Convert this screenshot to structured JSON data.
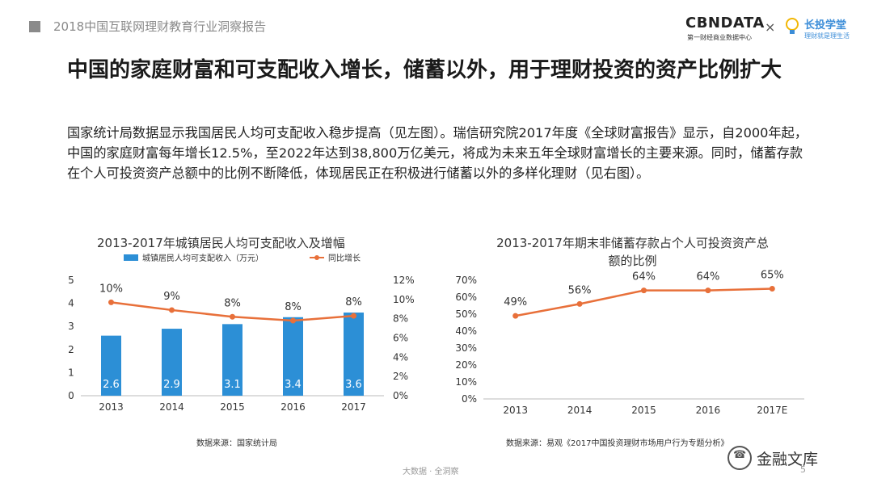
{
  "header": {
    "report_title": "2018中国互联网理财教育行业洞察报告",
    "logo_cbndata": "CBNDATA",
    "logo_cbndata_sub": "第一财经商业数据中心",
    "logo_separator": "×",
    "logo_partner": "长投学堂",
    "logo_partner_sub": "理财就是理生活"
  },
  "main_title": "中国的家庭财富和可支配收入增长，储蓄以外，用于理财投资的资产比例扩大",
  "paragraph": "国家统计局数据显示我国居民人均可支配收入稳步提高（见左图）。瑞信研究院2017年度《全球财富报告》显示，自2000年起，中国的家庭财富每年增长12.5%，至2022年达到38,800万亿美元，将成为未来五年全球财富增长的主要来源。同时，储蓄存款在个人可投资资产总额中的比例不断降低，体现居民正在积极进行储蓄以外的多样化理财（见右图）。",
  "chart_data": [
    {
      "type": "bar",
      "title": "2013-2017年城镇居民人均可支配收入及增幅",
      "categories": [
        "2013",
        "2014",
        "2015",
        "2016",
        "2017"
      ],
      "series": [
        {
          "name": "城镇居民人均可支配收入（万元）",
          "type": "bar",
          "axis": "left",
          "values": [
            2.6,
            2.9,
            3.1,
            3.4,
            3.6
          ],
          "labels": [
            "2.6",
            "2.9",
            "3.1",
            "3.4",
            "3.6"
          ],
          "color": "#2c8fd6"
        },
        {
          "name": "同比增长",
          "type": "line",
          "axis": "right",
          "values": [
            9.7,
            8.9,
            8.2,
            7.8,
            8.3
          ],
          "labels": [
            "10%",
            "9%",
            "8%",
            "8%",
            "8%"
          ],
          "color": "#e8703a"
        }
      ],
      "y_left": {
        "ticks": [
          "0",
          "1",
          "2",
          "3",
          "4",
          "5"
        ],
        "range": [
          0,
          5
        ]
      },
      "y_right": {
        "ticks": [
          "0%",
          "2%",
          "4%",
          "6%",
          "8%",
          "10%",
          "12%"
        ],
        "range": [
          0,
          12
        ]
      },
      "legend_position": "top",
      "grid": false,
      "source": "数据来源：国家统计局"
    },
    {
      "type": "line",
      "title": "2013-2017年期末非储蓄存款占个人可投资资产总额的比例",
      "categories": [
        "2013",
        "2014",
        "2015",
        "2016",
        "2017E"
      ],
      "series": [
        {
          "name": "",
          "values": [
            49,
            56,
            64,
            64,
            65
          ],
          "labels": [
            "49%",
            "56%",
            "64%",
            "64%",
            "65%"
          ],
          "color": "#e8703a"
        }
      ],
      "y": {
        "ticks": [
          "0%",
          "10%",
          "20%",
          "30%",
          "40%",
          "50%",
          "60%",
          "70%"
        ],
        "range": [
          0,
          70
        ]
      },
      "grid": false,
      "source": "数据来源：易观《2017中国投资理财市场用户行为专题分析》"
    }
  ],
  "footer": {
    "center_text": "大数据 · 全洞察",
    "page_number": "5"
  },
  "watermark": {
    "brand": "金融文库"
  }
}
